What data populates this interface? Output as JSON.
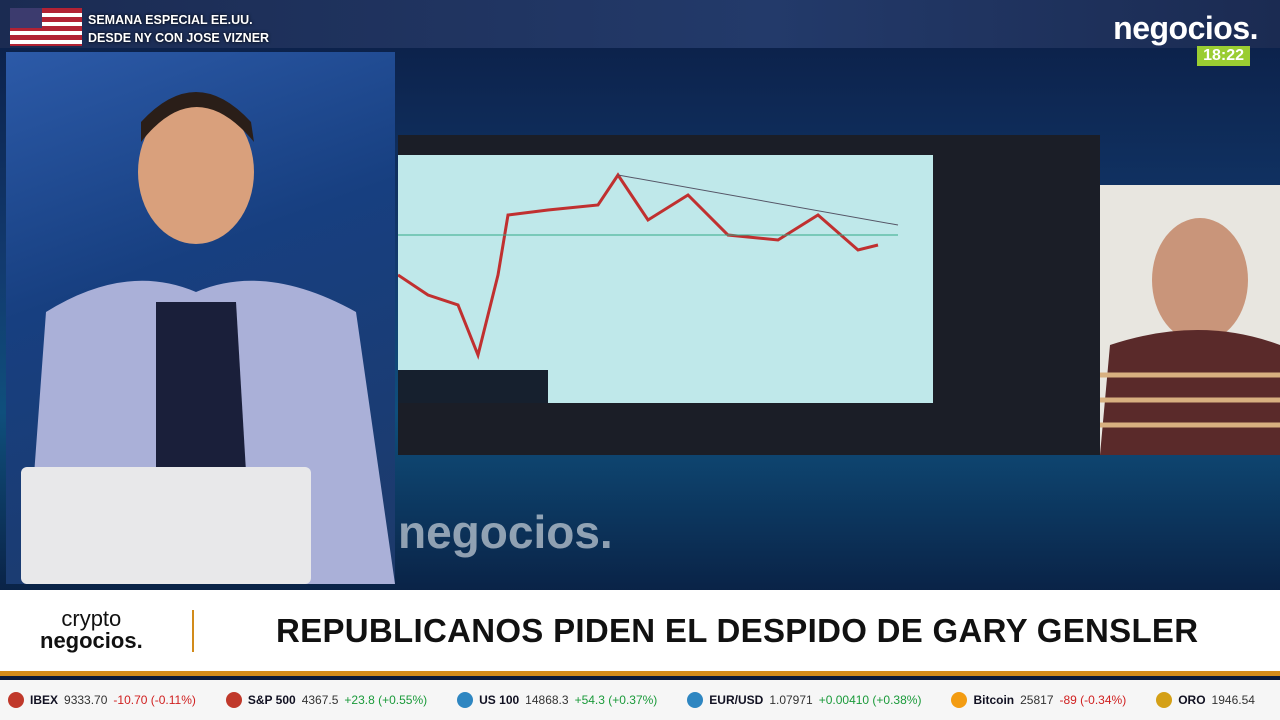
{
  "header": {
    "special_line1": "SEMANA ESPECIAL EE.UU.",
    "special_line2": "DESDE NY CON JOSE VIZNER",
    "brand": "negocios.",
    "time": "18:22"
  },
  "watermark": "negocios.",
  "lower_third": {
    "program_line1": "crypto",
    "program_line2": "negocios.",
    "headline": "REPUBLICANOS PIDEN EL DESPIDO DE GARY GENSLER"
  },
  "ticker": [
    {
      "name": "IBEX",
      "price": "9333.70",
      "change": "-10.70 (-0.11%)"
    },
    {
      "name": "S&P 500",
      "price": "4367.5",
      "change": "+23.8 (+0.55%)"
    },
    {
      "name": "US 100",
      "price": "14868.3",
      "change": "+54.3 (+0.37%)"
    },
    {
      "name": "EUR/USD",
      "price": "1.07971",
      "change": "+0.00410 (+0.38%)"
    },
    {
      "name": "Bitcoin",
      "price": "25817",
      "change": "-89 (-0.34%)"
    },
    {
      "name": "ORO",
      "price": "1946.54"
    }
  ]
}
